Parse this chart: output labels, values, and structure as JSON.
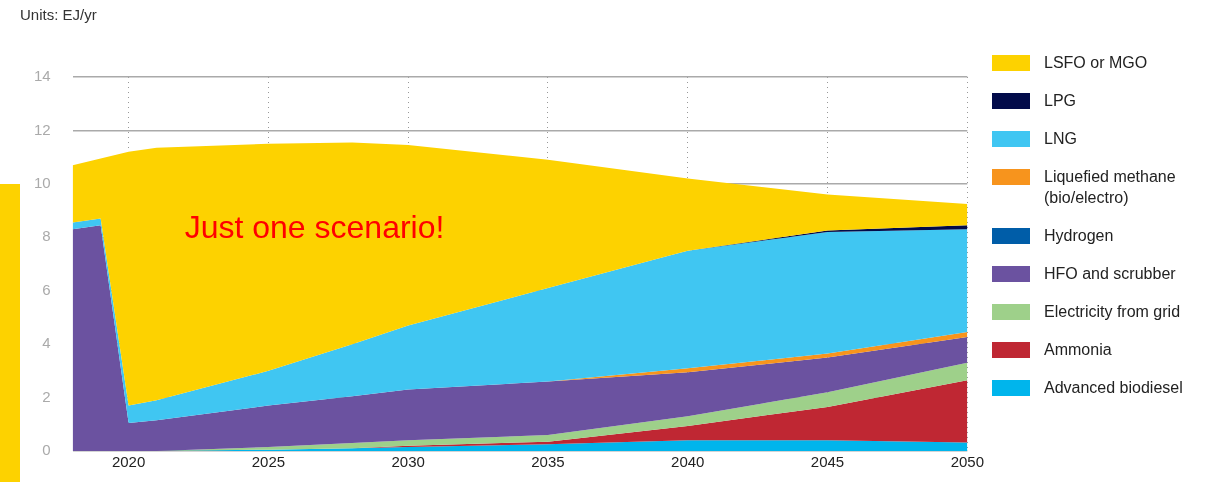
{
  "chart_data": {
    "type": "area",
    "stacked": true,
    "ylabel": "Units: EJ/yr",
    "annotations": [
      "Just one scenario!"
    ],
    "x": [
      2018,
      2019,
      2020,
      2021,
      2025,
      2028,
      2030,
      2035,
      2040,
      2045,
      2050
    ],
    "xlim": [
      2018,
      2050
    ],
    "xticks": [
      2020,
      2025,
      2030,
      2035,
      2040,
      2045,
      2050
    ],
    "ylim": [
      0,
      14
    ],
    "yticks": [
      0,
      2,
      4,
      6,
      8,
      10,
      12,
      14
    ],
    "grid": true,
    "legend": "right",
    "series": [
      {
        "name": "Advanced biodiesel",
        "color": "#00b5ec",
        "values": [
          0,
          0,
          0,
          0,
          0.05,
          0.1,
          0.15,
          0.25,
          0.4,
          0.4,
          0.32
        ]
      },
      {
        "name": "Ammonia",
        "color": "#bf2733",
        "values": [
          0,
          0,
          0,
          0,
          0,
          0,
          0.05,
          0.1,
          0.54,
          1.25,
          2.33
        ]
      },
      {
        "name": "Electricity from grid",
        "color": "#9ed08a",
        "values": [
          0,
          0,
          0,
          0,
          0.1,
          0.2,
          0.2,
          0.25,
          0.36,
          0.55,
          0.65
        ]
      },
      {
        "name": "HFO and scrubber",
        "color": "#6b52a0",
        "values": [
          8.3,
          8.45,
          1.05,
          1.15,
          1.55,
          1.75,
          1.9,
          2.0,
          1.65,
          1.3,
          0.97
        ]
      },
      {
        "name": "Hydrogen",
        "color": "#005da8",
        "values": [
          null,
          null,
          null,
          null,
          null,
          null,
          null,
          null,
          null,
          null,
          null
        ]
      },
      {
        "name": "Liquefied methane (bio/electro)",
        "color": "#f7941d",
        "values": [
          0,
          0,
          0,
          0,
          0,
          0,
          0,
          0,
          0.15,
          0.15,
          0.18
        ]
      },
      {
        "name": "LNG",
        "color": "#40c6f2",
        "values": [
          0.25,
          0.25,
          0.65,
          0.75,
          1.3,
          1.95,
          2.4,
          3.5,
          4.4,
          4.55,
          3.85
        ]
      },
      {
        "name": "LPG",
        "color": "#020b4a",
        "values": [
          0,
          0,
          0,
          0,
          0,
          0,
          0,
          0,
          0,
          0.05,
          0.15
        ]
      },
      {
        "name": "LSFO or MGO",
        "color": "#fdd200",
        "values": [
          2.15,
          2.25,
          9.5,
          9.45,
          8.5,
          7.55,
          6.75,
          4.8,
          2.7,
          1.35,
          0.8
        ]
      }
    ]
  }
}
